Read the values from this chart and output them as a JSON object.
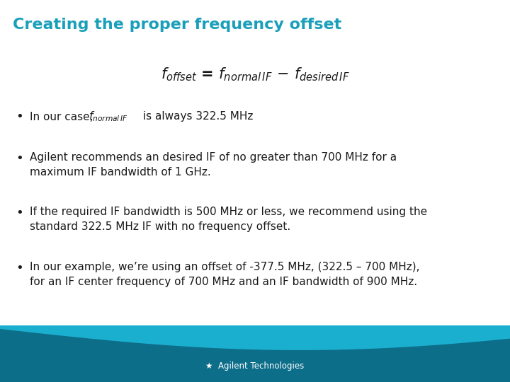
{
  "title": "Creating the proper frequency offset",
  "title_color": "#1a9fba",
  "title_fontsize": 16,
  "bg_color": "#ffffff",
  "bullet1_pre": "In our case, ",
  "bullet1_mid": "$\\mathit{f}_{normal\\ IF}$",
  "bullet1_post": " is always 322.5 MHz",
  "bullet2": "Agilent recommends an desired IF of no greater than 700 MHz for a\nmaximum IF bandwidth of 1 GHz.",
  "bullet3": "If the required IF bandwidth is 500 MHz or less, we recommend using the\nstandard 322.5 MHz IF with no frequency offset.",
  "bullet4": "In our example, we’re using an offset of -377.5 MHz, (322.5 – 700 MHz),\nfor an IF center frequency of 700 MHz and an IF bandwidth of 900 MHz.",
  "text_color": "#1a1a1a",
  "text_fontsize": 11,
  "footer_dark": "#0d6e8a",
  "footer_light": "#1aafcf",
  "footer_text": "Agilent Technologies",
  "footer_text_color": "#ffffff",
  "footer_text_fontsize": 8.5
}
